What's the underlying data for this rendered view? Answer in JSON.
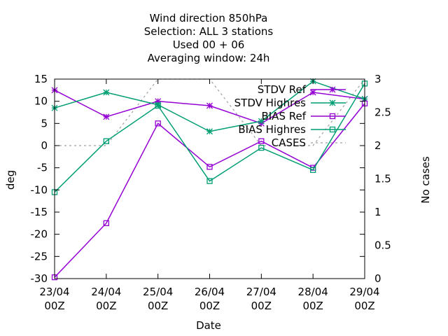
{
  "chart_data": {
    "type": "line",
    "title_lines": [
      "Wind direction 850hPa",
      "Selection: ALL      3 stations",
      "Used  00 + 06",
      "Averaging window: 24h"
    ],
    "xlabel": "Date",
    "ylabel": "deg",
    "y2label": "No cases",
    "x": [
      "23/04 00Z",
      "24/04 00Z",
      "25/04 00Z",
      "26/04 00Z",
      "27/04 00Z",
      "28/04 00Z",
      "29/04 00Z"
    ],
    "x_ticks": [
      {
        "top": "23/04",
        "bottom": "00Z"
      },
      {
        "top": "24/04",
        "bottom": "00Z"
      },
      {
        "top": "25/04",
        "bottom": "00Z"
      },
      {
        "top": "26/04",
        "bottom": "00Z"
      },
      {
        "top": "27/04",
        "bottom": "00Z"
      },
      {
        "top": "28/04",
        "bottom": "00Z"
      },
      {
        "top": "29/04",
        "bottom": "00Z"
      }
    ],
    "ylim": [
      -30,
      15
    ],
    "y_ticks": [
      15,
      10,
      5,
      0,
      -5,
      -10,
      -15,
      -20,
      -25,
      -30
    ],
    "y2lim": [
      0,
      3
    ],
    "y2_ticks": [
      "3",
      "2.5",
      "2",
      "1.5",
      "1",
      "0.5",
      "0"
    ],
    "legend_position": "top-right",
    "grid": false,
    "series": [
      {
        "name": "STDV Ref",
        "axis": "y",
        "color": "#9400d3",
        "marker": "star",
        "dash": "none",
        "values": [
          12.5,
          6.5,
          10,
          9,
          5,
          12,
          10.5
        ]
      },
      {
        "name": "STDV Highres",
        "axis": "y",
        "color": "#009e73",
        "marker": "star",
        "dash": "none",
        "values": [
          8.5,
          12,
          9.2,
          3.2,
          5.5,
          14.5,
          10.5
        ]
      },
      {
        "name": "BIAS Ref",
        "axis": "y",
        "color": "#9400d3",
        "marker": "square",
        "dash": "none",
        "values": [
          -29.7,
          -17.5,
          5,
          -4.8,
          1,
          -5,
          9.5
        ]
      },
      {
        "name": "BIAS Highres",
        "axis": "y",
        "color": "#009e73",
        "marker": "square",
        "dash": "none",
        "values": [
          -10.5,
          1,
          9,
          -8,
          -0.5,
          -5.5,
          14
        ]
      },
      {
        "name": "CASES",
        "axis": "y2",
        "color": "#a0a0a0",
        "marker": "none",
        "dash": "3,4",
        "values": [
          2,
          2,
          3,
          3,
          2,
          2,
          3
        ]
      }
    ]
  }
}
